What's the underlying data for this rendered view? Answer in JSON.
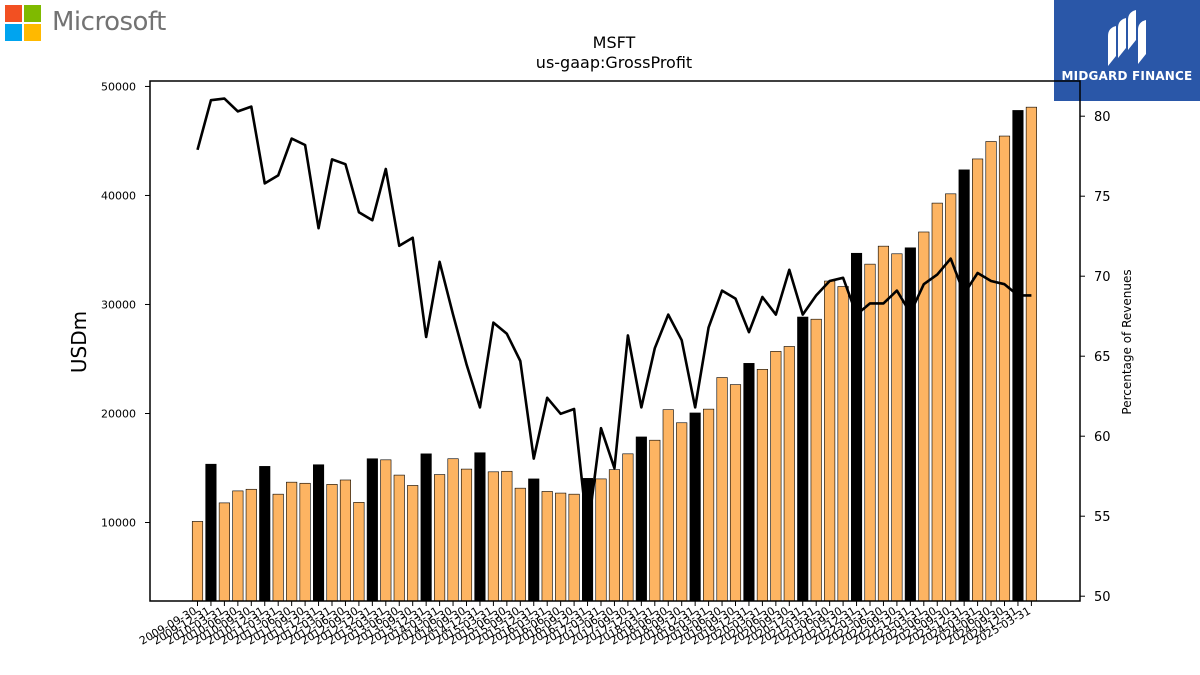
{
  "logos": {
    "microsoft": {
      "text": "Microsoft",
      "colors": [
        "#f25022",
        "#7fba00",
        "#00a4ef",
        "#ffb900"
      ]
    },
    "midgard": {
      "text": "MIDGARD FINANCE",
      "background": "#2a57a8"
    }
  },
  "chart_data": {
    "type": "bar",
    "title": "MSFT",
    "subtitle": "us-gaap:GrossProfit",
    "ylabel": "USDm",
    "y2label": "Percentage of Revenues",
    "ylim": [
      2800,
      50500
    ],
    "y2lim": [
      49.7,
      82.2
    ],
    "yticks": [
      10000,
      20000,
      30000,
      40000,
      50000
    ],
    "y2ticks": [
      50,
      55,
      60,
      65,
      70,
      75,
      80
    ],
    "colors": {
      "quarter": "#fdb462",
      "fiscal_year": "#000000",
      "line": "#000000"
    },
    "categories": [
      "2009-09-30",
      "2009-12-31",
      "2010-03-31",
      "2010-06-30",
      "2010-09-30",
      "2010-12-31",
      "2011-03-31",
      "2011-06-30",
      "2011-09-30",
      "2011-12-31",
      "2012-03-31",
      "2012-06-30",
      "2012-09-30",
      "2012-12-31",
      "2013-03-31",
      "2013-06-30",
      "2013-09-30",
      "2013-12-31",
      "2014-03-31",
      "2014-06-30",
      "2014-09-30",
      "2014-12-31",
      "2015-03-31",
      "2015-06-30",
      "2015-09-30",
      "2015-12-31",
      "2016-03-31",
      "2016-06-30",
      "2016-09-30",
      "2016-12-31",
      "2017-03-31",
      "2017-06-30",
      "2017-09-30",
      "2017-12-31",
      "2018-03-31",
      "2018-06-30",
      "2018-09-30",
      "2018-12-31",
      "2019-03-31",
      "2019-06-30",
      "2019-09-30",
      "2019-12-31",
      "2020-03-31",
      "2020-06-30",
      "2020-09-30",
      "2020-12-31",
      "2021-03-31",
      "2021-06-30",
      "2021-09-30",
      "2021-12-31",
      "2022-03-31",
      "2022-06-30",
      "2022-09-30",
      "2022-12-31",
      "2023-03-31",
      "2023-06-30",
      "2023-09-30",
      "2023-12-31",
      "2024-03-31",
      "2024-06-30",
      "2024-09-30",
      "2024-12-31",
      "2025-03-31"
    ],
    "x_tick_labels": [
      "2009-09-30",
      "2009-12-31",
      "2010-03-31",
      "2010-06-30",
      "2010-09-30",
      "2010-12-31",
      "2011-03-31",
      "2011-06-30",
      "2011-09-30",
      "2011-12-31",
      "2012-03-31",
      "2012-06-30",
      "2012-09-30",
      "2012-12-31",
      "2013-03-31",
      "2013-06-30",
      "2013-09-30",
      "2013-12-31",
      "2014-03-31",
      "2014-06-30",
      "2014-09-30",
      "2014-12-31",
      "2015-03-31",
      "2015-06-30",
      "2015-09-30",
      "2015-12-31",
      "2016-03-31",
      "2016-06-30",
      "2016-09-30",
      "2016-12-31",
      "2017-03-31",
      "2017-06-30",
      "2017-09-30",
      "2017-12-31",
      "2018-03-31",
      "2018-06-30",
      "2018-09-30",
      "2018-12-31",
      "2019-03-31",
      "2019-06-30",
      "2019-09-30",
      "2019-12-31",
      "2020-03-31",
      "2020-06-30",
      "2020-09-30",
      "2020-12-31",
      "2021-03-31",
      "2021-06-30",
      "2021-09-30",
      "2021-12-31",
      "2022-03-31",
      "2022-06-30",
      "2022-09-30",
      "2022-12-31",
      "2023-03-31",
      "2023-06-30",
      "2023-09-30",
      "2023-12-31",
      "2024-03-31",
      "2024-06-30",
      "2024-09-30",
      "2024-12-31",
      "2025-03-31"
    ],
    "bar_values": [
      10100,
      15350,
      11800,
      12900,
      13050,
      15150,
      12600,
      13700,
      13600,
      15300,
      13500,
      13900,
      11850,
      15850,
      15750,
      14350,
      13400,
      16300,
      14400,
      15850,
      14900,
      16400,
      14650,
      14700,
      13150,
      14000,
      12850,
      12700,
      12600,
      14050,
      14000,
      14850,
      16300,
      17850,
      17550,
      20350,
      19150,
      20050,
      20400,
      23300,
      22650,
      24600,
      24050,
      25700,
      26150,
      28850,
      28650,
      32150,
      31650,
      34700,
      33700,
      35350,
      34650,
      35200,
      36650,
      39300,
      40150,
      42350,
      43350,
      44950,
      45450,
      47800,
      48100
    ],
    "bar_kind": [
      "q",
      "fy",
      "q",
      "q",
      "q",
      "fy",
      "q",
      "q",
      "q",
      "fy",
      "q",
      "q",
      "q",
      "fy",
      "q",
      "q",
      "q",
      "fy",
      "q",
      "q",
      "q",
      "fy",
      "q",
      "q",
      "q",
      "fy",
      "q",
      "q",
      "q",
      "fy",
      "q",
      "q",
      "q",
      "fy",
      "q",
      "q",
      "q",
      "fy",
      "q",
      "q",
      "q",
      "fy",
      "q",
      "q",
      "q",
      "fy",
      "q",
      "q",
      "q",
      "fy",
      "q",
      "q",
      "q",
      "fy",
      "q",
      "q",
      "q",
      "fy",
      "q",
      "q",
      "q",
      "fy",
      "q"
    ],
    "line_values": [
      77.9,
      81.0,
      81.1,
      80.3,
      80.6,
      75.8,
      76.3,
      78.6,
      78.2,
      73.0,
      77.3,
      77.0,
      74.0,
      73.5,
      76.7,
      71.9,
      72.4,
      66.2,
      70.9,
      67.6,
      64.5,
      61.8,
      67.1,
      66.4,
      64.7,
      58.6,
      62.4,
      61.4,
      61.7,
      54.0,
      60.5,
      58.0,
      66.3,
      61.8,
      65.5,
      67.6,
      66.0,
      61.8,
      66.8,
      69.1,
      68.6,
      66.5,
      68.7,
      67.6,
      70.4,
      67.6,
      68.8,
      69.7,
      69.9,
      67.6,
      68.3,
      68.3,
      69.1,
      67.7,
      69.5,
      70.1,
      71.1,
      68.9,
      70.2,
      69.7,
      69.5,
      68.8,
      68.8
    ]
  }
}
